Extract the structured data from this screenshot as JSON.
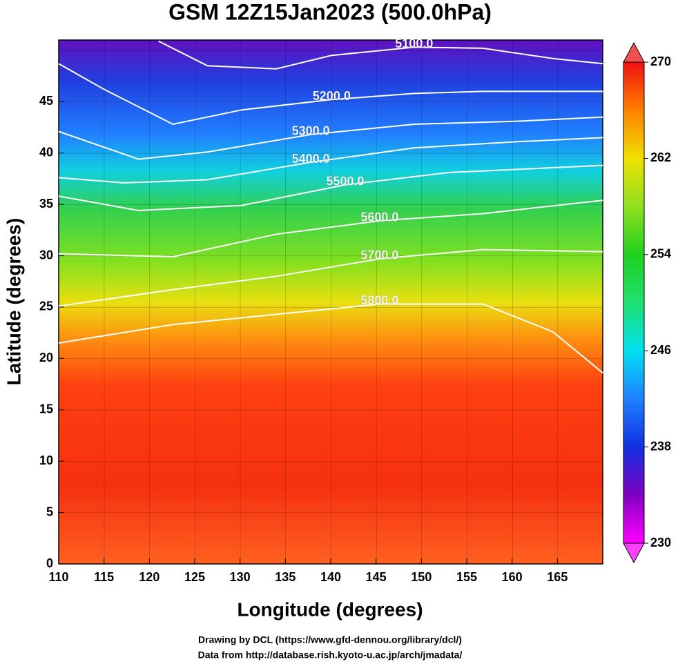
{
  "chart_data": {
    "type": "contour-map",
    "title": "GSM 12Z15Jan2023 (500.0hPa)",
    "x_label": "Longitude (degrees)",
    "y_label": "Latitude  (degrees)",
    "xlim": [
      110,
      170
    ],
    "xticks": [
      110,
      115,
      120,
      125,
      130,
      135,
      140,
      145,
      150,
      155,
      160,
      165
    ],
    "ylim": [
      0,
      51
    ],
    "yticks": [
      0,
      5,
      10,
      15,
      20,
      25,
      30,
      35,
      40,
      45
    ],
    "colorbar": {
      "lim": [
        230,
        270
      ],
      "ticks": [
        230,
        238,
        246,
        254,
        262,
        270
      ]
    },
    "contours": [
      {
        "value": 5100,
        "label": "5100.0",
        "lon": [
          121.0,
          126.4,
          134.0,
          140.1,
          149.2,
          156.8,
          164.5,
          170
        ],
        "lat": [
          50.9,
          48.5,
          48.2,
          49.5,
          50.3,
          50.2,
          49.2,
          48.7
        ]
      },
      {
        "value": 5200,
        "label": "5200.0",
        "lon": [
          110,
          115,
          122.6,
          130.2,
          140.1,
          149.2,
          156.8,
          170
        ],
        "lat": [
          48.7,
          46.2,
          42.8,
          44.2,
          45.2,
          45.8,
          46,
          46
        ]
      },
      {
        "value": 5300,
        "label": "5300.0",
        "lon": [
          110,
          118.8,
          126.4,
          137.8,
          149.2,
          160.6,
          170
        ],
        "lat": [
          42.1,
          39.4,
          40.1,
          41.8,
          42.8,
          43.1,
          43.5
        ]
      },
      {
        "value": 5400,
        "label": "5400.0",
        "lon": [
          110,
          117.2,
          126.4,
          137.8,
          149.2,
          160.6,
          170
        ],
        "lat": [
          37.6,
          37.1,
          37.4,
          39.1,
          40.5,
          41.1,
          41.5
        ]
      },
      {
        "value": 5500,
        "label": "5500.0",
        "lon": [
          110,
          118.8,
          130.2,
          141.6,
          153,
          170
        ],
        "lat": [
          35.8,
          34.4,
          34.9,
          36.9,
          38.1,
          38.8
        ]
      },
      {
        "value": 5600,
        "label": "5600.0",
        "lon": [
          110,
          122.6,
          134,
          145.4,
          156.8,
          170
        ],
        "lat": [
          30.2,
          29.9,
          32.1,
          33.4,
          34.1,
          35.4
        ]
      },
      {
        "value": 5700,
        "label": "5700.0",
        "lon": [
          110,
          122.6,
          134,
          145.4,
          156.8,
          170
        ],
        "lat": [
          25.1,
          26.7,
          28,
          29.7,
          30.6,
          30.4
        ]
      },
      {
        "value": 5800,
        "label": "5800.0",
        "lon": [
          110,
          122.6,
          134,
          145.4,
          156.8,
          164.5,
          170
        ],
        "lat": [
          21.5,
          23.3,
          24.3,
          25.3,
          25.3,
          22.6,
          18.6
        ]
      }
    ],
    "footer": [
      "Drawing by DCL (https://www.gfd-dennou.org/library/dcl/)",
      "Data from http://database.rish.kyoto-u.ac.jp/arch/jmadata/"
    ]
  }
}
